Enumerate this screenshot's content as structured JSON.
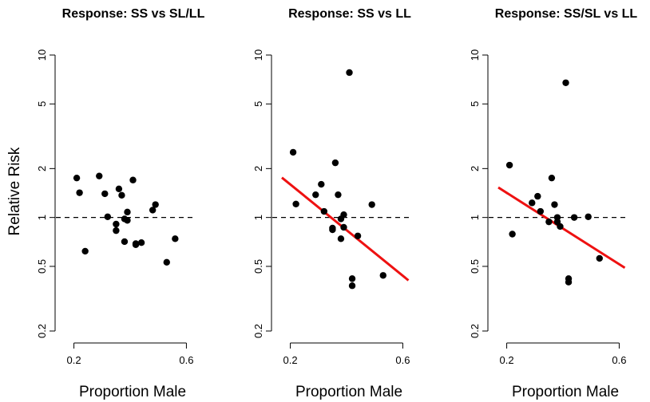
{
  "figure": {
    "ylabel": "Relative Risk"
  },
  "chart_data": [
    {
      "type": "scatter",
      "title": "Response: SS vs SL/LL",
      "xlabel": "Proportion Male",
      "ylabel": "Relative Risk",
      "y_scale": "log",
      "xlim": [
        0.17,
        0.63
      ],
      "ylim": [
        0.2,
        10
      ],
      "x_ticks": [
        0.2,
        0.6
      ],
      "x_tick_labels": [
        "0.2",
        "0.6"
      ],
      "y_ticks": [
        0.2,
        0.5,
        1,
        2,
        5,
        10
      ],
      "y_tick_labels": [
        "0.2",
        "0.5",
        "1",
        "2",
        "5",
        "10"
      ],
      "reference_line": 1,
      "grid": false,
      "points": [
        {
          "x": 0.21,
          "y": 1.75
        },
        {
          "x": 0.22,
          "y": 1.42
        },
        {
          "x": 0.24,
          "y": 0.62
        },
        {
          "x": 0.29,
          "y": 1.8
        },
        {
          "x": 0.31,
          "y": 1.4
        },
        {
          "x": 0.32,
          "y": 1.01
        },
        {
          "x": 0.35,
          "y": 0.91
        },
        {
          "x": 0.35,
          "y": 0.83
        },
        {
          "x": 0.36,
          "y": 1.5
        },
        {
          "x": 0.37,
          "y": 1.37
        },
        {
          "x": 0.38,
          "y": 0.71
        },
        {
          "x": 0.38,
          "y": 0.98
        },
        {
          "x": 0.39,
          "y": 0.96
        },
        {
          "x": 0.39,
          "y": 1.08
        },
        {
          "x": 0.41,
          "y": 1.7
        },
        {
          "x": 0.42,
          "y": 0.68
        },
        {
          "x": 0.42,
          "y": 0.69
        },
        {
          "x": 0.44,
          "y": 0.7
        },
        {
          "x": 0.48,
          "y": 1.11
        },
        {
          "x": 0.49,
          "y": 1.2
        },
        {
          "x": 0.53,
          "y": 0.53
        },
        {
          "x": 0.56,
          "y": 0.74
        }
      ],
      "fit_line": null
    },
    {
      "type": "scatter",
      "title": "Response: SS vs LL",
      "xlabel": "Proportion Male",
      "ylabel": "",
      "y_scale": "log",
      "xlim": [
        0.17,
        0.63
      ],
      "ylim": [
        0.2,
        10
      ],
      "x_ticks": [
        0.2,
        0.6
      ],
      "x_tick_labels": [
        "0.2",
        "0.6"
      ],
      "y_ticks": [
        0.2,
        0.5,
        1,
        2,
        5,
        10
      ],
      "y_tick_labels": [
        "0.2",
        "0.5",
        "1",
        "2",
        "5",
        "10"
      ],
      "reference_line": 1,
      "grid": false,
      "points": [
        {
          "x": 0.21,
          "y": 2.52
        },
        {
          "x": 0.22,
          "y": 1.21
        },
        {
          "x": 0.29,
          "y": 1.38
        },
        {
          "x": 0.31,
          "y": 1.6
        },
        {
          "x": 0.32,
          "y": 1.09
        },
        {
          "x": 0.35,
          "y": 0.86
        },
        {
          "x": 0.35,
          "y": 0.84
        },
        {
          "x": 0.36,
          "y": 2.17
        },
        {
          "x": 0.37,
          "y": 1.38
        },
        {
          "x": 0.38,
          "y": 0.98
        },
        {
          "x": 0.38,
          "y": 0.74
        },
        {
          "x": 0.39,
          "y": 1.04
        },
        {
          "x": 0.39,
          "y": 0.87
        },
        {
          "x": 0.41,
          "y": 7.8
        },
        {
          "x": 0.42,
          "y": 0.42
        },
        {
          "x": 0.42,
          "y": 0.38
        },
        {
          "x": 0.44,
          "y": 0.77
        },
        {
          "x": 0.49,
          "y": 1.2
        },
        {
          "x": 0.53,
          "y": 0.44
        }
      ],
      "fit_line": {
        "color": "#ee1111",
        "x": [
          0.17,
          0.62
        ],
        "y": [
          1.76,
          0.41
        ]
      }
    },
    {
      "type": "scatter",
      "title": "Response: SS/SL vs LL",
      "xlabel": "Proportion Male",
      "ylabel": "",
      "y_scale": "log",
      "xlim": [
        0.17,
        0.63
      ],
      "ylim": [
        0.2,
        10
      ],
      "x_ticks": [
        0.2,
        0.6
      ],
      "x_tick_labels": [
        "0.2",
        "0.6"
      ],
      "y_ticks": [
        0.2,
        0.5,
        1,
        2,
        5,
        10
      ],
      "y_tick_labels": [
        "0.2",
        "0.5",
        "1",
        "2",
        "5",
        "10"
      ],
      "reference_line": 1,
      "grid": false,
      "points": [
        {
          "x": 0.21,
          "y": 2.1
        },
        {
          "x": 0.22,
          "y": 0.79
        },
        {
          "x": 0.29,
          "y": 1.23
        },
        {
          "x": 0.31,
          "y": 1.35
        },
        {
          "x": 0.32,
          "y": 1.09
        },
        {
          "x": 0.35,
          "y": 0.94
        },
        {
          "x": 0.36,
          "y": 1.75
        },
        {
          "x": 0.37,
          "y": 1.2
        },
        {
          "x": 0.38,
          "y": 1.0
        },
        {
          "x": 0.38,
          "y": 0.94
        },
        {
          "x": 0.39,
          "y": 0.88
        },
        {
          "x": 0.41,
          "y": 6.75
        },
        {
          "x": 0.42,
          "y": 0.42
        },
        {
          "x": 0.42,
          "y": 0.4
        },
        {
          "x": 0.44,
          "y": 1.0
        },
        {
          "x": 0.49,
          "y": 1.01
        },
        {
          "x": 0.53,
          "y": 0.56
        }
      ],
      "fit_line": {
        "color": "#ee1111",
        "x": [
          0.17,
          0.62
        ],
        "y": [
          1.53,
          0.49
        ]
      }
    }
  ]
}
